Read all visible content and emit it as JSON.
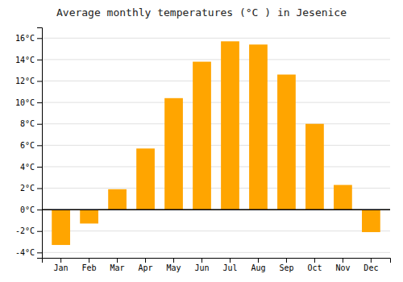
{
  "chart_data": {
    "type": "bar",
    "title": "Average monthly temperatures (°C ) in Jesenice",
    "categories": [
      "Jan",
      "Feb",
      "Mar",
      "Apr",
      "May",
      "Jun",
      "Jul",
      "Aug",
      "Sep",
      "Oct",
      "Nov",
      "Dec"
    ],
    "values": [
      -3.3,
      -1.3,
      1.9,
      5.7,
      10.4,
      13.8,
      15.7,
      15.4,
      12.6,
      8.0,
      2.3,
      -2.1
    ],
    "color": "#FFA500",
    "ylim": [
      -4.5,
      17.0
    ],
    "yticks": [
      {
        "value": -4,
        "label": "-4°C"
      },
      {
        "value": -2,
        "label": "-2°C"
      },
      {
        "value": 0,
        "label": "0°C"
      },
      {
        "value": 2,
        "label": "2°C"
      },
      {
        "value": 4,
        "label": "4°C"
      },
      {
        "value": 6,
        "label": "6°C"
      },
      {
        "value": 8,
        "label": "8°C"
      },
      {
        "value": 10,
        "label": "10°C"
      },
      {
        "value": 12,
        "label": "12°C"
      },
      {
        "value": 14,
        "label": "14°C"
      },
      {
        "value": 16,
        "label": "16°C"
      }
    ],
    "grid": true
  }
}
